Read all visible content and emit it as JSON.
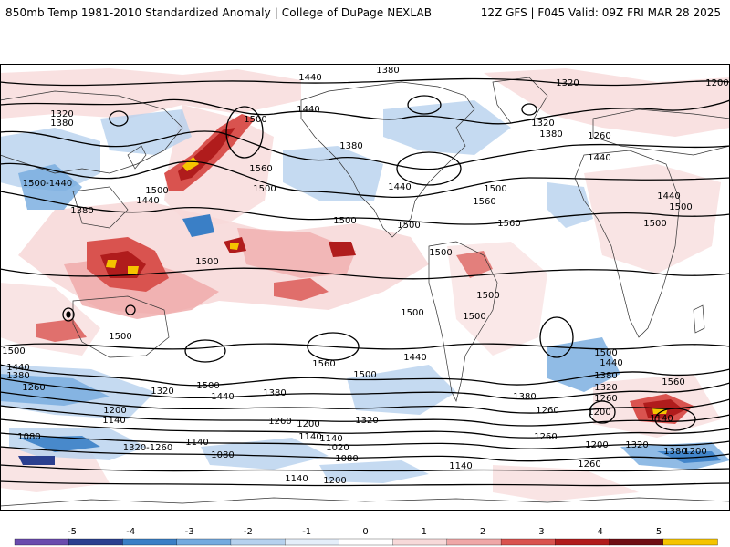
{
  "header": {
    "left_title": "850mb Temp 1981-2010 Standardized Anomaly | College of DuPage NEXLAB",
    "right_title": "12Z GFS | F045 Valid: 09Z FRI MAR 28 2025"
  },
  "colorbar": {
    "ticks": [
      "-5",
      "-4",
      "-3",
      "-2",
      "-1",
      "0",
      "1",
      "2",
      "3",
      "4",
      "5"
    ],
    "colors": [
      "#6a4cae",
      "#2b3f8f",
      "#3a7fc6",
      "#74aadf",
      "#b6d1ee",
      "#e4eef9",
      "#ffffff",
      "#f7d9d9",
      "#efa7a7",
      "#d9534f",
      "#b01c1c",
      "#6e0f14",
      "#f5c400"
    ]
  },
  "map": {
    "contour_labels": [
      {
        "text": "1440"
      },
      {
        "text": "1380"
      },
      {
        "text": "1320"
      },
      {
        "text": "1200"
      },
      {
        "text": "1320"
      },
      {
        "text": "1380"
      },
      {
        "text": "1440"
      },
      {
        "text": "1500"
      },
      {
        "text": "1380"
      },
      {
        "text": "1560"
      },
      {
        "text": "1500"
      },
      {
        "text": "1320"
      },
      {
        "text": "1380"
      },
      {
        "text": "1260"
      },
      {
        "text": "1440"
      },
      {
        "text": "1500"
      },
      {
        "text": "1500-1440"
      },
      {
        "text": "1380"
      },
      {
        "text": "1440"
      },
      {
        "text": "1500"
      },
      {
        "text": "1440"
      },
      {
        "text": "1500"
      },
      {
        "text": "1560"
      },
      {
        "text": "1560"
      },
      {
        "text": "1500"
      },
      {
        "text": "1500"
      },
      {
        "text": "1440"
      },
      {
        "text": "1500"
      },
      {
        "text": "1500"
      },
      {
        "text": "1500"
      },
      {
        "text": "1500"
      },
      {
        "text": "1500"
      },
      {
        "text": "1500"
      },
      {
        "text": "1500"
      },
      {
        "text": "1440"
      },
      {
        "text": "1380"
      },
      {
        "text": "1260"
      },
      {
        "text": "1500"
      },
      {
        "text": "1440"
      },
      {
        "text": "1380"
      },
      {
        "text": "1320"
      },
      {
        "text": "1260"
      },
      {
        "text": "1200"
      },
      {
        "text": "1560"
      },
      {
        "text": "1560"
      },
      {
        "text": "1500"
      },
      {
        "text": "1500"
      },
      {
        "text": "1320"
      },
      {
        "text": "1440"
      },
      {
        "text": "1380"
      },
      {
        "text": "1260"
      },
      {
        "text": "1200"
      },
      {
        "text": "1320"
      },
      {
        "text": "1380"
      },
      {
        "text": "1260"
      },
      {
        "text": "1140"
      },
      {
        "text": "1200"
      },
      {
        "text": "1140"
      },
      {
        "text": "1080"
      },
      {
        "text": "1140"
      },
      {
        "text": "1200"
      },
      {
        "text": "1140"
      },
      {
        "text": "1140"
      },
      {
        "text": "1080"
      },
      {
        "text": "1080"
      },
      {
        "text": "1020"
      },
      {
        "text": "1140"
      },
      {
        "text": "1200"
      },
      {
        "text": "1140"
      },
      {
        "text": "1320"
      },
      {
        "text": "1260"
      },
      {
        "text": "1200"
      },
      {
        "text": "1380"
      },
      {
        "text": "1260"
      },
      {
        "text": "1320-1260"
      },
      {
        "text": "1500"
      },
      {
        "text": "1440"
      }
    ]
  }
}
